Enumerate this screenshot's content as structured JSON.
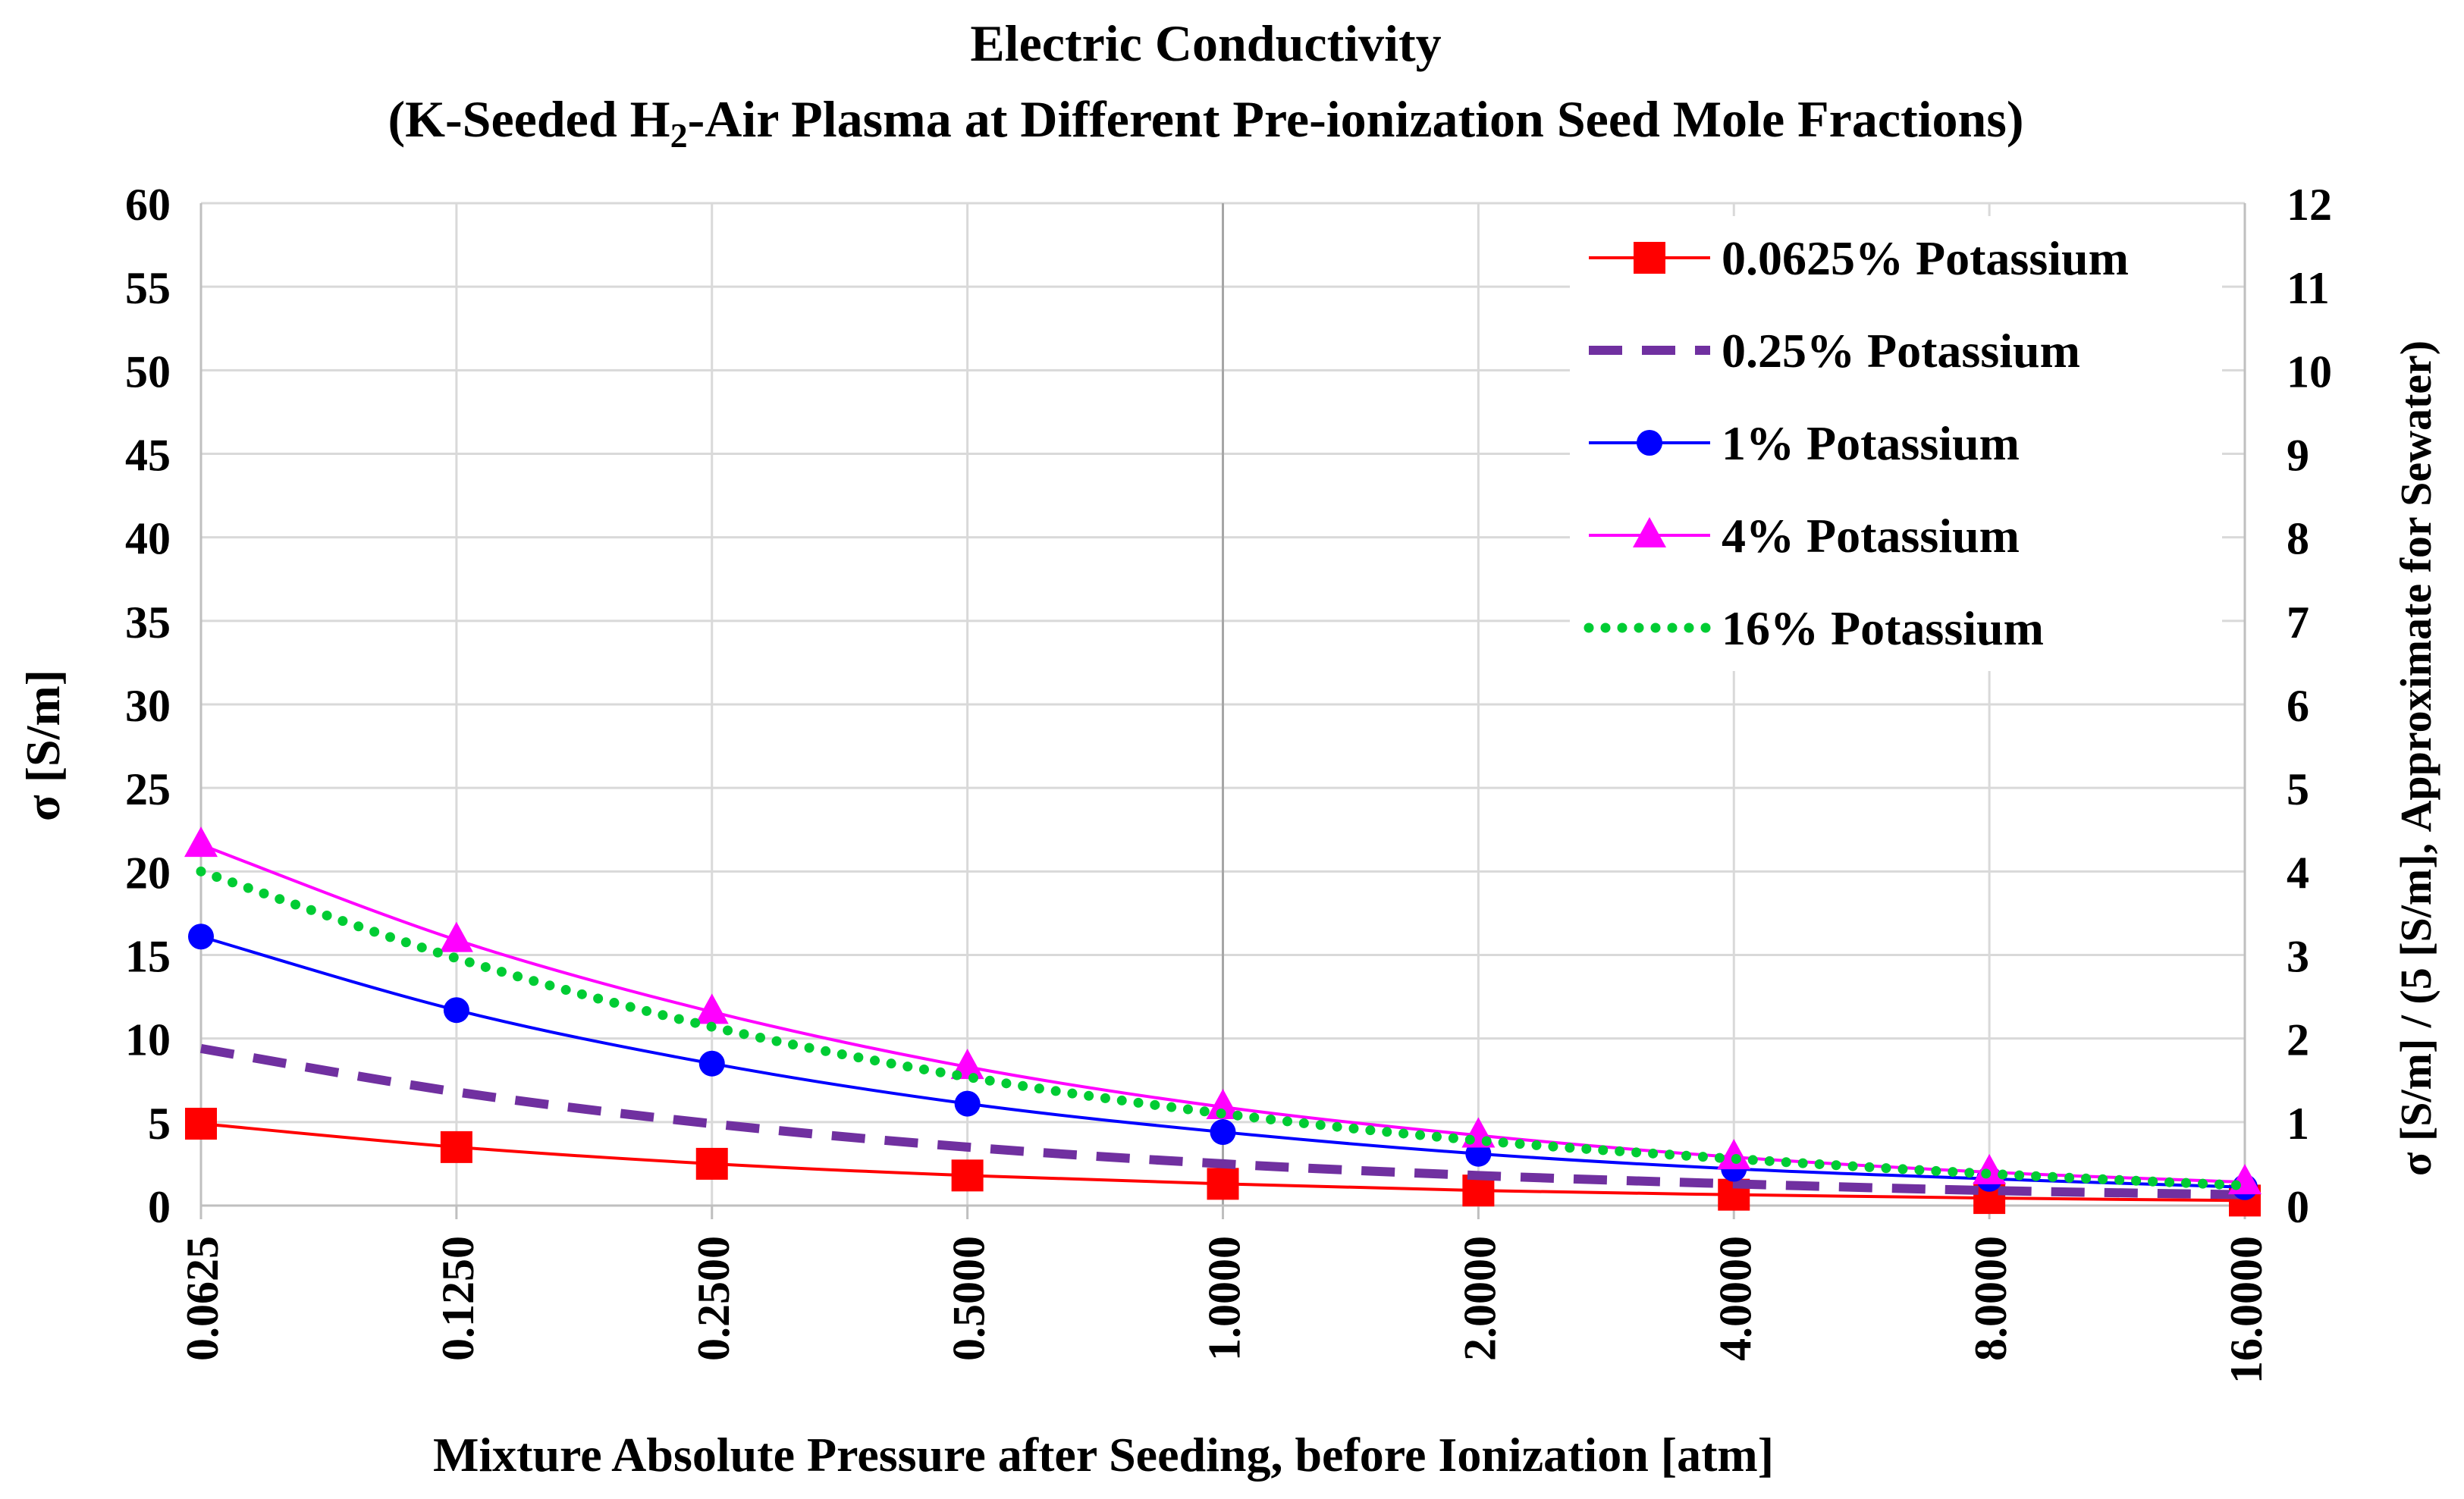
{
  "chart_data": {
    "type": "line",
    "title": "Electric Conductivity",
    "subtitle_parts": [
      "(K-Seeded H",
      "2",
      "-Air Plasma at Different Pre-ionization Seed Mole Fractions)"
    ],
    "xlabel": "Mixture Absolute Pressure after Seeding, before Ionization [atm]",
    "ylabel": "σ [S/m]",
    "y2label": "σ [S/m] / (5 [S/m], Approximate for Sewater)",
    "x_scale": "log2",
    "categories": [
      "0.0625",
      "0.1250",
      "0.2500",
      "0.5000",
      "1.0000",
      "2.0000",
      "4.0000",
      "8.0000",
      "16.0000"
    ],
    "ylim": [
      0,
      60
    ],
    "yticks": [
      "0",
      "5",
      "10",
      "15",
      "20",
      "25",
      "30",
      "35",
      "40",
      "45",
      "50",
      "55",
      "60"
    ],
    "y2lim": [
      0,
      12
    ],
    "y2ticks": [
      "0",
      "1",
      "2",
      "3",
      "4",
      "5",
      "6",
      "7",
      "8",
      "9",
      "10",
      "11",
      "12"
    ],
    "grid": true,
    "legend_position": "top-right",
    "series": [
      {
        "name": "0.0625% Potassium",
        "color": "#ff0000",
        "marker": "square",
        "dash": "solid",
        "values": [
          4.9,
          3.5,
          2.5,
          1.8,
          1.3,
          0.9,
          0.65,
          0.45,
          0.3
        ]
      },
      {
        "name": "0.25% Potassium",
        "color": "#7030a0",
        "marker": "none",
        "dash": "dashed",
        "values": [
          9.4,
          6.8,
          4.9,
          3.5,
          2.5,
          1.8,
          1.3,
          0.9,
          0.65
        ]
      },
      {
        "name": "1% Potassium",
        "color": "#0000ff",
        "marker": "circle",
        "dash": "solid",
        "values": [
          16.1,
          11.7,
          8.5,
          6.1,
          4.4,
          3.1,
          2.2,
          1.6,
          1.1
        ]
      },
      {
        "name": "4% Potassium",
        "color": "#ff00ff",
        "marker": "triangle",
        "dash": "solid",
        "values": [
          21.6,
          15.9,
          11.6,
          8.3,
          5.9,
          4.2,
          2.9,
          2.0,
          1.4
        ]
      },
      {
        "name": "16% Potassium",
        "color": "#00cc33",
        "marker": "none",
        "dash": "dotted",
        "values": [
          20.0,
          14.8,
          10.7,
          7.7,
          5.5,
          3.9,
          2.8,
          1.9,
          1.2
        ]
      }
    ]
  }
}
